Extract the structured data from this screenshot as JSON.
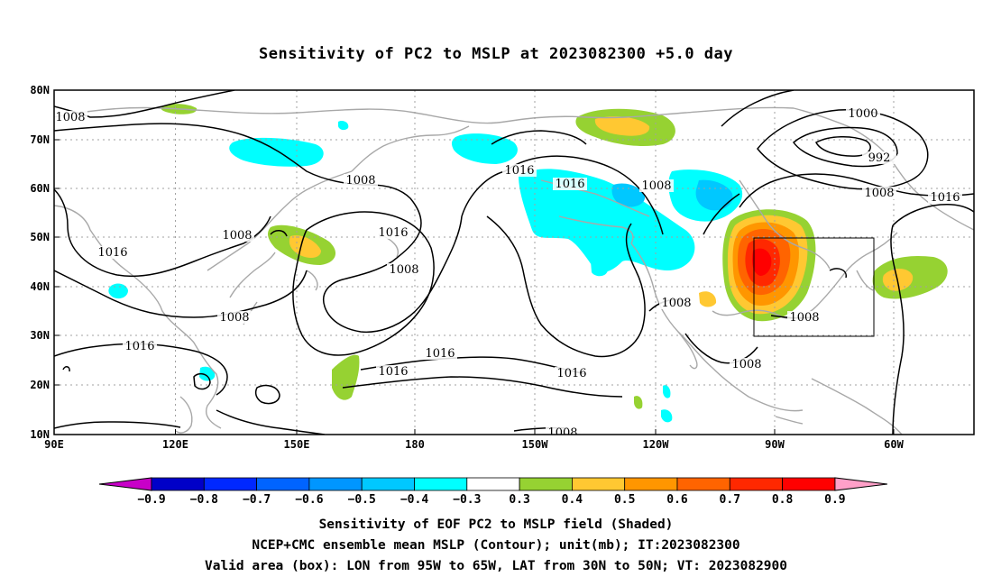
{
  "title": "Sensitivity of PC2 to MSLP at 2023082300 +5.0 day",
  "map": {
    "lon_labels": [
      "90E",
      "120E",
      "150E",
      "180",
      "150W",
      "120W",
      "90W",
      "60W"
    ],
    "lat_labels": [
      "80N",
      "70N",
      "60N",
      "50N",
      "40N",
      "30N",
      "20N",
      "10N"
    ],
    "contour_labels": [
      "1008",
      "1016",
      "1008",
      "1016",
      "1008",
      "1016",
      "1008",
      "1016",
      "1016",
      "1016",
      "1016",
      "1008",
      "1016",
      "1008",
      "1008",
      "1000",
      "992",
      "1008",
      "1016",
      "1008",
      "1008",
      "1008",
      "1008",
      "1008"
    ],
    "valid_box": {
      "lon_from": "95W",
      "lon_to": "65W",
      "lat_from": "30N",
      "lat_to": "50N"
    }
  },
  "colorbar": {
    "labels": [
      "-0.9",
      "-0.8",
      "-0.7",
      "-0.6",
      "-0.5",
      "-0.4",
      "-0.3",
      "0.3",
      "0.4",
      "0.5",
      "0.6",
      "0.7",
      "0.8",
      "0.9"
    ],
    "colors": [
      "#c800c8",
      "#0000c8",
      "#0028ff",
      "#0064ff",
      "#0096ff",
      "#00c8ff",
      "#00ffff",
      "#ffffff",
      "#96d232",
      "#ffc832",
      "#ff9600",
      "#ff6400",
      "#ff2800",
      "#ff0000",
      "#ffa0c8"
    ]
  },
  "caption": {
    "line1": "Sensitivity of EOF PC2 to MSLP field (Shaded)",
    "line2": "NCEP+CMC ensemble mean MSLP (Contour); unit(mb); IT:2023082300",
    "line3": "Valid area (box): LON from 95W to 65W, LAT from 30N to 50N; VT: 2023082900"
  }
}
